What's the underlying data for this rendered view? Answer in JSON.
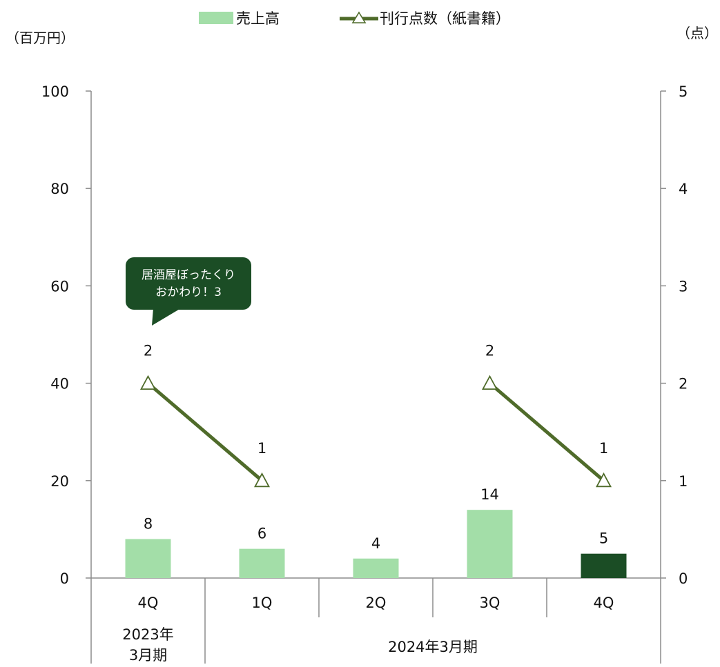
{
  "chart_data": {
    "type": "bar",
    "left_unit": "（百万円）",
    "right_unit": "（点）",
    "categories": [
      "4Q",
      "1Q",
      "2Q",
      "3Q",
      "4Q"
    ],
    "groups": [
      {
        "label_lines": [
          "2023年",
          "3月期"
        ],
        "span": 1
      },
      {
        "label_lines": [
          "2024年3月期"
        ],
        "span": 4
      }
    ],
    "y_left": {
      "min": 0,
      "max": 100,
      "ticks": [
        0,
        20,
        40,
        60,
        80,
        100
      ]
    },
    "y_right": {
      "min": 0,
      "max": 5,
      "ticks": [
        0,
        1,
        2,
        3,
        4,
        5
      ]
    },
    "series": [
      {
        "name": "売上高",
        "kind": "bar",
        "axis": "left",
        "values": [
          8,
          6,
          4,
          14,
          5
        ],
        "labels": [
          "8",
          "6",
          "4",
          "14",
          "5"
        ],
        "colors": [
          "#a3dea8",
          "#a3dea8",
          "#a3dea8",
          "#a3dea8",
          "#1b4d25"
        ]
      },
      {
        "name": "刊行点数（紙書籍）",
        "kind": "line",
        "axis": "right",
        "values": [
          2,
          1,
          null,
          2,
          1
        ],
        "labels": [
          "2",
          "1",
          "",
          "2",
          "1"
        ],
        "segments": [
          [
            0,
            1
          ],
          [
            3,
            4
          ]
        ],
        "color": "#4f6b2a",
        "marker": "triangle"
      }
    ],
    "callout": {
      "lines": [
        "居酒屋ぼったくり",
        "おかわり！3"
      ],
      "index": 0,
      "bg": "#1b4d25"
    },
    "grid": false,
    "legend_position": "top"
  }
}
